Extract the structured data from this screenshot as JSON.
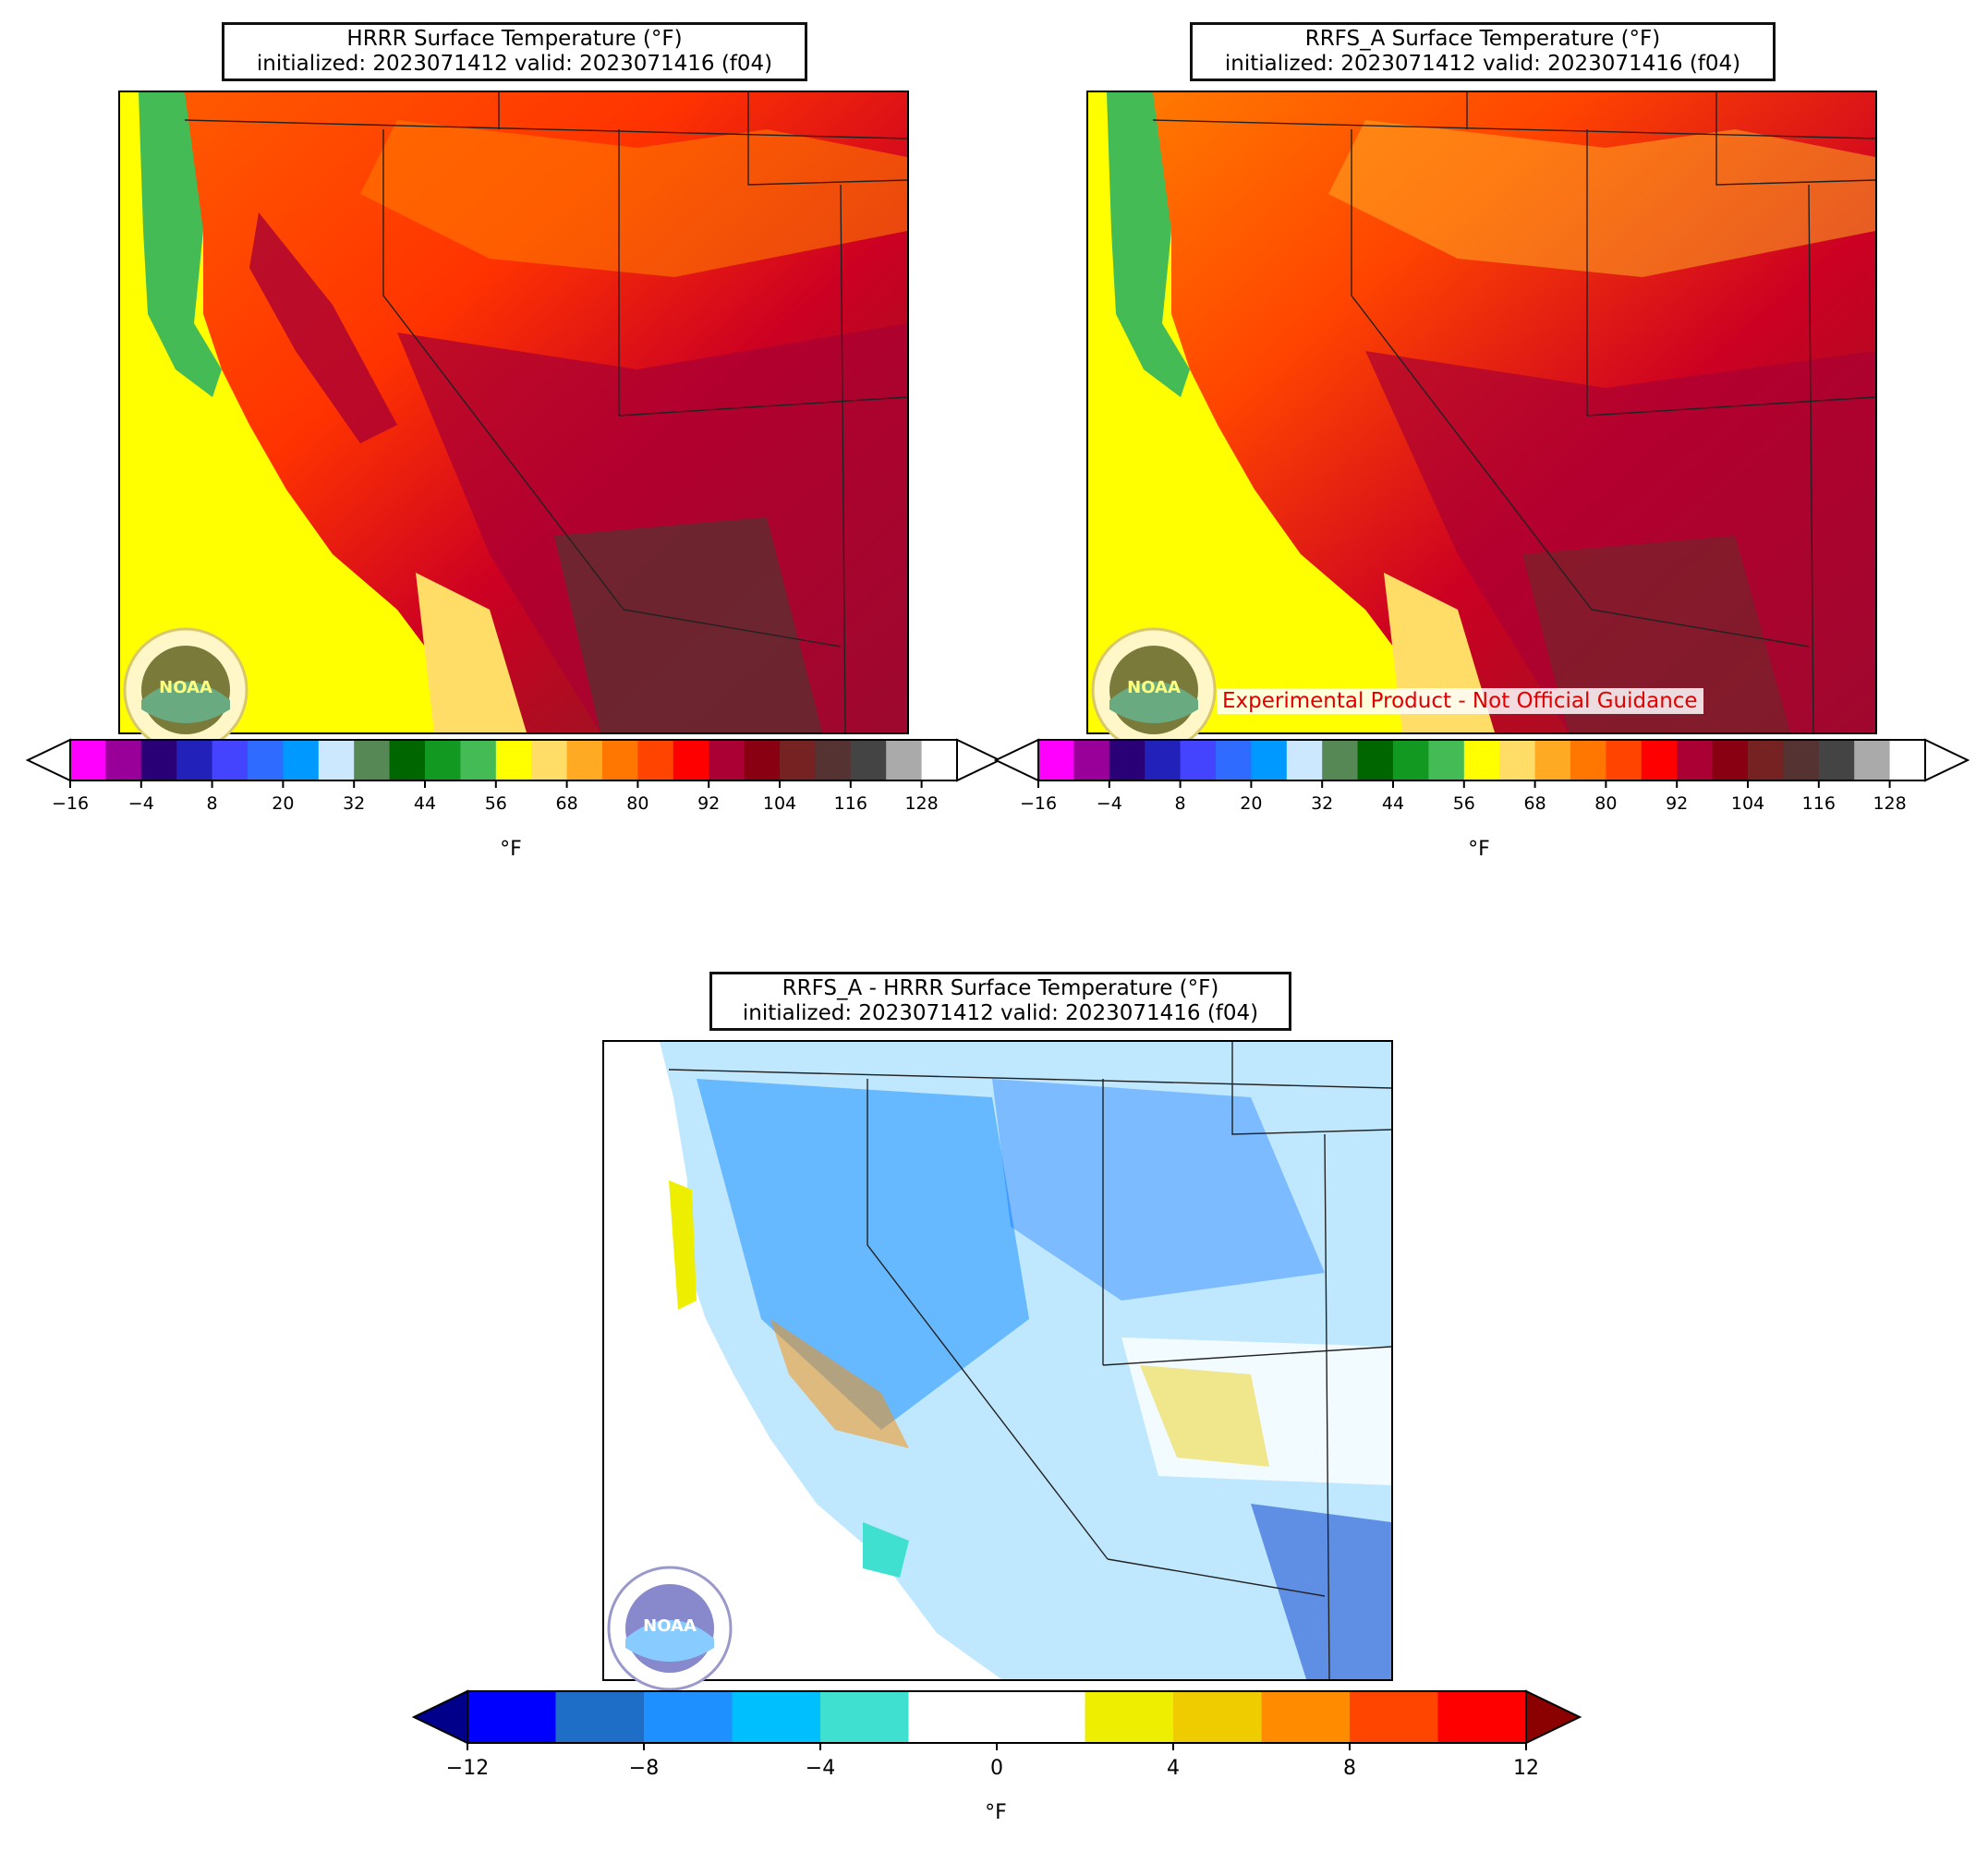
{
  "panels": [
    {
      "id": "hrrr",
      "title_line1": "HRRR Surface Temperature (°F)",
      "title_line2": "initialized: 2023071412 valid: 2023071416 (f04)"
    },
    {
      "id": "rrfs",
      "title_line1": "RRFS_A Surface Temperature (°F)",
      "title_line2": "initialized: 2023071412 valid: 2023071416 (f04)",
      "badge": "Experimental Product - Not Official Guidance"
    },
    {
      "id": "diff",
      "title_line1": "RRFS_A - HRRR Surface Temperature (°F)",
      "title_line2": "initialized: 2023071412 valid: 2023071416 (f04)"
    }
  ],
  "logo_text": "NOAA",
  "temp_colorbar": {
    "unit_label": "°F",
    "ticks": [
      "−16",
      "−4",
      "8",
      "20",
      "32",
      "44",
      "56",
      "68",
      "80",
      "92",
      "104",
      "116",
      "128"
    ],
    "colors": [
      "#ff00ff",
      "#990099",
      "#2a0077",
      "#2222bb",
      "#4444ff",
      "#2f6bff",
      "#0099ff",
      "#cce8ff",
      "#558855",
      "#006600",
      "#119922",
      "#44bb55",
      "#ffff00",
      "#ffdd66",
      "#ffaa22",
      "#ff7700",
      "#ff4400",
      "#ff0000",
      "#aa0033",
      "#880011",
      "#772222",
      "#553333",
      "#444444",
      "#aaaaaa"
    ],
    "extend_low_color": "#ffffff",
    "extend_high_color": "#ffffff"
  },
  "diff_colorbar": {
    "unit_label": "°F",
    "ticks": [
      "−12",
      "−8",
      "−4",
      "0",
      "4",
      "8",
      "12"
    ],
    "colors": [
      "#0000ff",
      "#1e6ec8",
      "#1e90ff",
      "#00bfff",
      "#40e0d0",
      "#ffffff",
      "#ffffff",
      "#eeee00",
      "#eecc00",
      "#ff8c00",
      "#ff4500",
      "#ff0000"
    ],
    "extend_low_color": "#00008b",
    "extend_high_color": "#8b0000"
  }
}
